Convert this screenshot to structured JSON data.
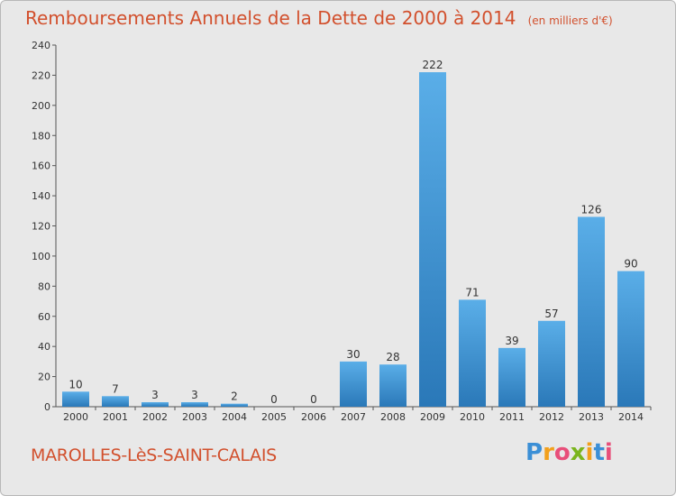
{
  "title": "Remboursements Annuels de la Dette de 2000 à 2014",
  "unit_note": "(en milliers d'€)",
  "commune": "MAROLLES-LèS-SAINT-CALAIS",
  "logo": {
    "letters": [
      "P",
      "r",
      "o",
      "x",
      "i",
      "t",
      "i"
    ],
    "colors": [
      "#3b8fd6",
      "#f2a01c",
      "#e84f7a",
      "#7ab51d",
      "#f2a01c",
      "#3b8fd6",
      "#e84f7a"
    ]
  },
  "colors": {
    "bar_top": "#5aaee8",
    "bar_bottom": "#2a78b8",
    "title": "#d2502d"
  },
  "chart_data": {
    "type": "bar",
    "categories": [
      "2000",
      "2001",
      "2002",
      "2003",
      "2004",
      "2005",
      "2006",
      "2007",
      "2008",
      "2009",
      "2010",
      "2011",
      "2012",
      "2013",
      "2014"
    ],
    "values": [
      10,
      7,
      3,
      3,
      2,
      0,
      0,
      30,
      28,
      222,
      71,
      39,
      57,
      126,
      90
    ],
    "title": "Remboursements Annuels de la Dette de 2000 à 2014",
    "ylim": [
      0,
      240
    ],
    "yticks": [
      0,
      20,
      40,
      60,
      80,
      100,
      120,
      140,
      160,
      180,
      200,
      220,
      240
    ],
    "grid": false,
    "legend": "none"
  }
}
